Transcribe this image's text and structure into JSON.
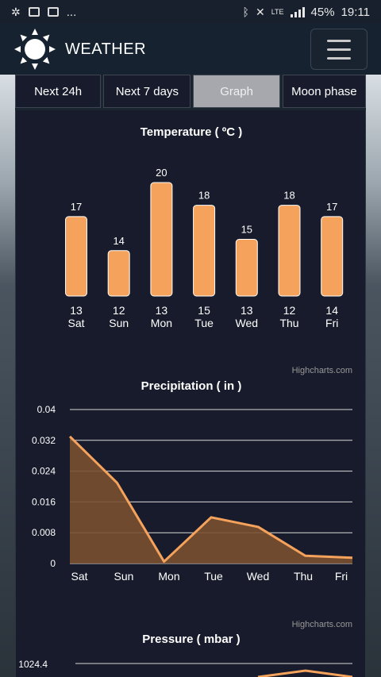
{
  "status_bar": {
    "notification_icons": [
      "settings-icon",
      "image-icon",
      "mail-icon"
    ],
    "more": "...",
    "battery": "45%",
    "time": "19:11",
    "network": "LTE"
  },
  "app": {
    "title": "WEATHER"
  },
  "tabs": [
    {
      "label": "Next 24h",
      "active": false
    },
    {
      "label": "Next 7 days",
      "active": false
    },
    {
      "label": "Graph",
      "active": true
    },
    {
      "label": "Moon phase",
      "active": false
    }
  ],
  "credits": "Highcharts.com",
  "colors": {
    "accent": "#f5a35c",
    "area_fill": "#7a5030",
    "panel": "#171b2b"
  },
  "chart_data": [
    {
      "type": "bar",
      "title": "Temperature ( ºC )",
      "categories": [
        {
          "num": "13",
          "day": "Sat"
        },
        {
          "num": "12",
          "day": "Sun"
        },
        {
          "num": "13",
          "day": "Mon"
        },
        {
          "num": "15",
          "day": "Tue"
        },
        {
          "num": "13",
          "day": "Wed"
        },
        {
          "num": "12",
          "day": "Thu"
        },
        {
          "num": "14",
          "day": "Fri"
        }
      ],
      "values": [
        17,
        14,
        20,
        18,
        15,
        18,
        17
      ],
      "ylim": [
        10,
        20
      ]
    },
    {
      "type": "area",
      "title": "Precipitation ( in )",
      "categories": [
        "Sat",
        "Sun",
        "Mon",
        "Tue",
        "Wed",
        "Thu",
        "Fri"
      ],
      "values": [
        0.033,
        0.021,
        0.0005,
        0.012,
        0.0095,
        0.002,
        0.0015
      ],
      "yticks": [
        "0",
        "0.008",
        "0.016",
        "0.024",
        "0.032",
        "0.04"
      ],
      "ylim": [
        0,
        0.04
      ],
      "grid": true
    },
    {
      "type": "area",
      "title": "Pressure ( mbar )",
      "yticks": [
        "1024.4"
      ]
    }
  ]
}
